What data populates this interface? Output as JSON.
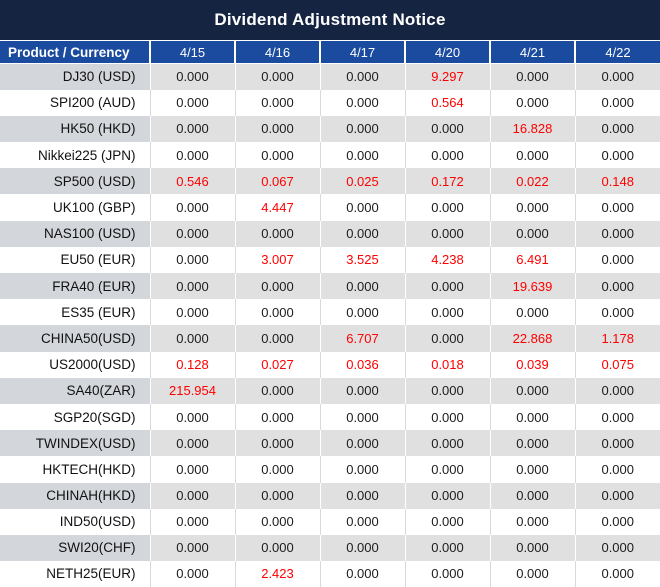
{
  "title": "Dividend Adjustment Notice",
  "colors": {
    "title_bg": "#152441",
    "header_bg": "#1a4b9e",
    "stripe_bg": "#e0e0e0",
    "stripe_product_bg": "#d3d6da",
    "red": "#ff0000",
    "zero_text": "#1c1c1c"
  },
  "table": {
    "columns": [
      "Product / Currency",
      "4/15",
      "4/16",
      "4/17",
      "4/20",
      "4/21",
      "4/22"
    ],
    "rows": [
      {
        "product": "DJ30 (USD)",
        "values": [
          {
            "v": "0.000"
          },
          {
            "v": "0.000"
          },
          {
            "v": "0.000"
          },
          {
            "v": "9.297",
            "red": true
          },
          {
            "v": "0.000"
          },
          {
            "v": "0.000"
          }
        ]
      },
      {
        "product": "SPI200 (AUD)",
        "values": [
          {
            "v": "0.000"
          },
          {
            "v": "0.000"
          },
          {
            "v": "0.000"
          },
          {
            "v": "0.564",
            "red": true
          },
          {
            "v": "0.000"
          },
          {
            "v": "0.000"
          }
        ]
      },
      {
        "product": "HK50 (HKD)",
        "values": [
          {
            "v": "0.000"
          },
          {
            "v": "0.000"
          },
          {
            "v": "0.000"
          },
          {
            "v": "0.000"
          },
          {
            "v": "16.828",
            "red": true
          },
          {
            "v": "0.000"
          }
        ]
      },
      {
        "product": "Nikkei225 (JPN)",
        "values": [
          {
            "v": "0.000"
          },
          {
            "v": "0.000"
          },
          {
            "v": "0.000"
          },
          {
            "v": "0.000"
          },
          {
            "v": "0.000"
          },
          {
            "v": "0.000"
          }
        ]
      },
      {
        "product": "SP500 (USD)",
        "values": [
          {
            "v": "0.546",
            "red": true
          },
          {
            "v": "0.067",
            "red": true
          },
          {
            "v": "0.025",
            "red": true
          },
          {
            "v": "0.172",
            "red": true
          },
          {
            "v": "0.022",
            "red": true
          },
          {
            "v": "0.148",
            "red": true
          }
        ]
      },
      {
        "product": "UK100 (GBP)",
        "values": [
          {
            "v": "0.000"
          },
          {
            "v": "4.447",
            "red": true
          },
          {
            "v": "0.000"
          },
          {
            "v": "0.000"
          },
          {
            "v": "0.000"
          },
          {
            "v": "0.000"
          }
        ]
      },
      {
        "product": "NAS100 (USD)",
        "values": [
          {
            "v": "0.000"
          },
          {
            "v": "0.000"
          },
          {
            "v": "0.000"
          },
          {
            "v": "0.000"
          },
          {
            "v": "0.000"
          },
          {
            "v": "0.000"
          }
        ]
      },
      {
        "product": "EU50 (EUR)",
        "values": [
          {
            "v": "0.000"
          },
          {
            "v": "3.007",
            "red": true
          },
          {
            "v": "3.525",
            "red": true
          },
          {
            "v": "4.238",
            "red": true
          },
          {
            "v": "6.491",
            "red": true
          },
          {
            "v": "0.000"
          }
        ]
      },
      {
        "product": "FRA40 (EUR)",
        "values": [
          {
            "v": "0.000"
          },
          {
            "v": "0.000"
          },
          {
            "v": "0.000"
          },
          {
            "v": "0.000"
          },
          {
            "v": "19.639",
            "red": true
          },
          {
            "v": "0.000"
          }
        ]
      },
      {
        "product": "ES35 (EUR)",
        "values": [
          {
            "v": "0.000"
          },
          {
            "v": "0.000"
          },
          {
            "v": "0.000"
          },
          {
            "v": "0.000"
          },
          {
            "v": "0.000"
          },
          {
            "v": "0.000"
          }
        ]
      },
      {
        "product": "CHINA50(USD)",
        "values": [
          {
            "v": "0.000"
          },
          {
            "v": "0.000"
          },
          {
            "v": "6.707",
            "red": true
          },
          {
            "v": "0.000"
          },
          {
            "v": "22.868",
            "red": true
          },
          {
            "v": "1.178",
            "red": true
          }
        ]
      },
      {
        "product": "US2000(USD)",
        "values": [
          {
            "v": "0.128",
            "red": true
          },
          {
            "v": "0.027",
            "red": true
          },
          {
            "v": "0.036",
            "red": true
          },
          {
            "v": "0.018",
            "red": true
          },
          {
            "v": "0.039",
            "red": true
          },
          {
            "v": "0.075",
            "red": true
          }
        ]
      },
      {
        "product": "SA40(ZAR)",
        "values": [
          {
            "v": "215.954",
            "red": true
          },
          {
            "v": "0.000"
          },
          {
            "v": "0.000"
          },
          {
            "v": "0.000"
          },
          {
            "v": "0.000"
          },
          {
            "v": "0.000"
          }
        ]
      },
      {
        "product": "SGP20(SGD)",
        "values": [
          {
            "v": "0.000"
          },
          {
            "v": "0.000"
          },
          {
            "v": "0.000"
          },
          {
            "v": "0.000"
          },
          {
            "v": "0.000"
          },
          {
            "v": "0.000"
          }
        ]
      },
      {
        "product": "TWINDEX(USD)",
        "values": [
          {
            "v": "0.000"
          },
          {
            "v": "0.000"
          },
          {
            "v": "0.000"
          },
          {
            "v": "0.000"
          },
          {
            "v": "0.000"
          },
          {
            "v": "0.000"
          }
        ]
      },
      {
        "product": "HKTECH(HKD)",
        "values": [
          {
            "v": "0.000"
          },
          {
            "v": "0.000"
          },
          {
            "v": "0.000"
          },
          {
            "v": "0.000"
          },
          {
            "v": "0.000"
          },
          {
            "v": "0.000"
          }
        ]
      },
      {
        "product": "CHINAH(HKD)",
        "values": [
          {
            "v": "0.000"
          },
          {
            "v": "0.000"
          },
          {
            "v": "0.000"
          },
          {
            "v": "0.000"
          },
          {
            "v": "0.000"
          },
          {
            "v": "0.000"
          }
        ]
      },
      {
        "product": "IND50(USD)",
        "values": [
          {
            "v": "0.000"
          },
          {
            "v": "0.000"
          },
          {
            "v": "0.000"
          },
          {
            "v": "0.000"
          },
          {
            "v": "0.000"
          },
          {
            "v": "0.000"
          }
        ]
      },
      {
        "product": "SWI20(CHF)",
        "values": [
          {
            "v": "0.000"
          },
          {
            "v": "0.000"
          },
          {
            "v": "0.000"
          },
          {
            "v": "0.000"
          },
          {
            "v": "0.000"
          },
          {
            "v": "0.000"
          }
        ]
      },
      {
        "product": "NETH25(EUR)",
        "values": [
          {
            "v": "0.000"
          },
          {
            "v": "2.423",
            "red": true
          },
          {
            "v": "0.000"
          },
          {
            "v": "0.000"
          },
          {
            "v": "0.000"
          },
          {
            "v": "0.000"
          }
        ]
      }
    ]
  }
}
